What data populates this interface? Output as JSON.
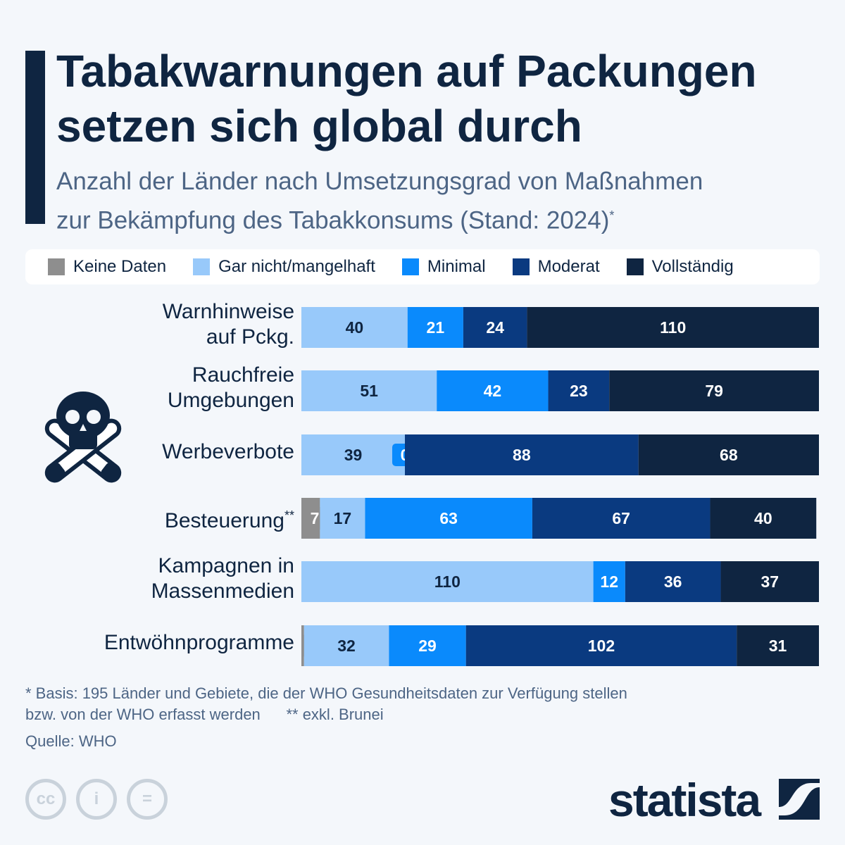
{
  "title": "Tabakwarnungen auf Packungen\nsetzen sich global durch",
  "subtitle": "Anzahl der Länder nach Umsetzungsgrad von Maßnahmen\nzur Bekämpfung des Tabakkonsums (Stand: 2024)",
  "subtitle_mark": "*",
  "chart_data": {
    "type": "bar",
    "orientation": "horizontal",
    "stacked": true,
    "categories": [
      "Warnhinweise\nauf Pckg.",
      "Rauchfreie\nUmgebungen",
      "Werbeverbote",
      "Besteuerung",
      "Kampagnen in\nMassenmedien",
      "Entwöhnprogramme"
    ],
    "category_marks": [
      "",
      "",
      "",
      "**",
      "",
      ""
    ],
    "xlim": [
      0,
      195
    ],
    "legend_position": "top",
    "series": [
      {
        "name": "Keine Daten",
        "color": "#8e8e8e",
        "values": [
          0,
          0,
          0,
          7,
          0,
          1
        ]
      },
      {
        "name": "Gar nicht/mangelhaft",
        "color": "#98c9fa",
        "values": [
          40,
          51,
          39,
          17,
          110,
          32
        ]
      },
      {
        "name": "Minimal",
        "color": "#0a8afc",
        "values": [
          21,
          42,
          0,
          63,
          12,
          29
        ]
      },
      {
        "name": "Moderat",
        "color": "#0a3a80",
        "values": [
          24,
          23,
          88,
          67,
          36,
          102
        ]
      },
      {
        "name": "Vollständig",
        "color": "#0f2541",
        "values": [
          110,
          79,
          68,
          40,
          37,
          31
        ]
      }
    ]
  },
  "footnote1": "* Basis: 195 Länder und Gebiete, die der WHO Gesundheitsdaten zur Verfügung stellen",
  "footnote2": "bzw. von der WHO erfasst werden      ** exkl. Brunei",
  "source": "Quelle: WHO",
  "license_icons": [
    "creative-commons",
    "attribution",
    "no-derivatives"
  ],
  "license_text": [
    "cc",
    "i",
    "="
  ],
  "brand": "statista",
  "illustration": "skull-crossbones-icon"
}
